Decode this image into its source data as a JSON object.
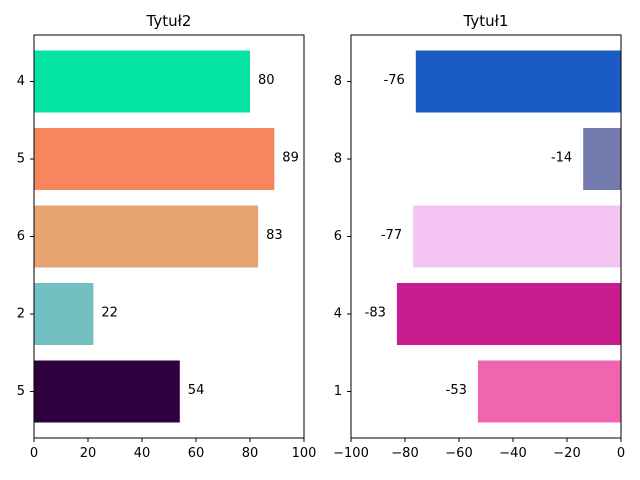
{
  "chart_data": [
    {
      "type": "bar",
      "orientation": "horizontal",
      "title": "Tytuł2",
      "categories": [
        "4",
        "5",
        "6",
        "2",
        "5"
      ],
      "values": [
        80,
        89,
        83,
        22,
        54
      ],
      "colors": [
        "#03e3a3",
        "#f7855e",
        "#e8a373",
        "#73c0c2",
        "#2e003e"
      ],
      "xlim": [
        0,
        100
      ],
      "xticks": [
        "0",
        "20",
        "40",
        "60",
        "80",
        "100"
      ],
      "grid": false,
      "legend": "none"
    },
    {
      "type": "bar",
      "orientation": "horizontal",
      "title": "Tytuł1",
      "categories": [
        "8",
        "8",
        "6",
        "4",
        "1"
      ],
      "values": [
        -76,
        -14,
        -77,
        -83,
        -53
      ],
      "colors": [
        "#1b5cc4",
        "#737aad",
        "#f4c5f3",
        "#c81c8e",
        "#f064b0"
      ],
      "xlim": [
        -100,
        0
      ],
      "xticks": [
        "−100",
        "−80",
        "−60",
        "−40",
        "−20",
        "0"
      ],
      "grid": false,
      "legend": "none"
    }
  ]
}
